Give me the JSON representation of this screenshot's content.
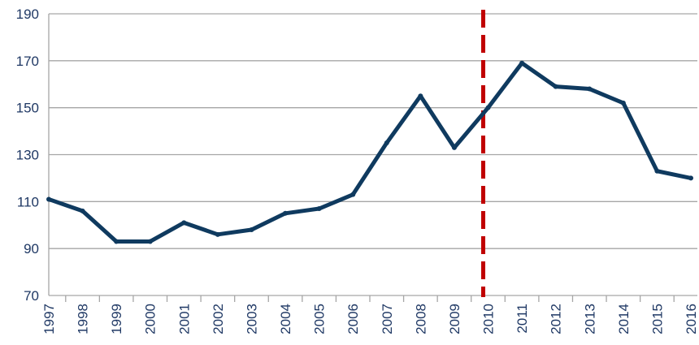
{
  "chart_data": {
    "type": "line",
    "categories": [
      "1997",
      "1998",
      "1999",
      "2000",
      "2001",
      "2002",
      "2003",
      "2004",
      "2005",
      "2006",
      "2007",
      "2008",
      "2009",
      "2010",
      "2011",
      "2012",
      "2013",
      "2014",
      "2015",
      "2016"
    ],
    "series": [
      {
        "values": [
          111,
          106,
          93,
          93,
          101,
          96,
          98,
          105,
          107,
          113,
          135,
          155,
          133,
          150,
          169,
          159,
          158,
          152,
          123,
          120
        ]
      }
    ],
    "title": "",
    "xlabel": "",
    "ylabel": "",
    "ylim": [
      70,
      190
    ],
    "yticks": [
      70,
      90,
      110,
      130,
      150,
      170,
      190
    ],
    "grid": "horizontal",
    "legend": "none",
    "marker_line": {
      "category": "2010",
      "style": "dashed"
    },
    "colors": {
      "line": "#0f3a5f",
      "marker": "#c00000",
      "grid": "#a6a6a6",
      "text": "#1f3864"
    }
  }
}
